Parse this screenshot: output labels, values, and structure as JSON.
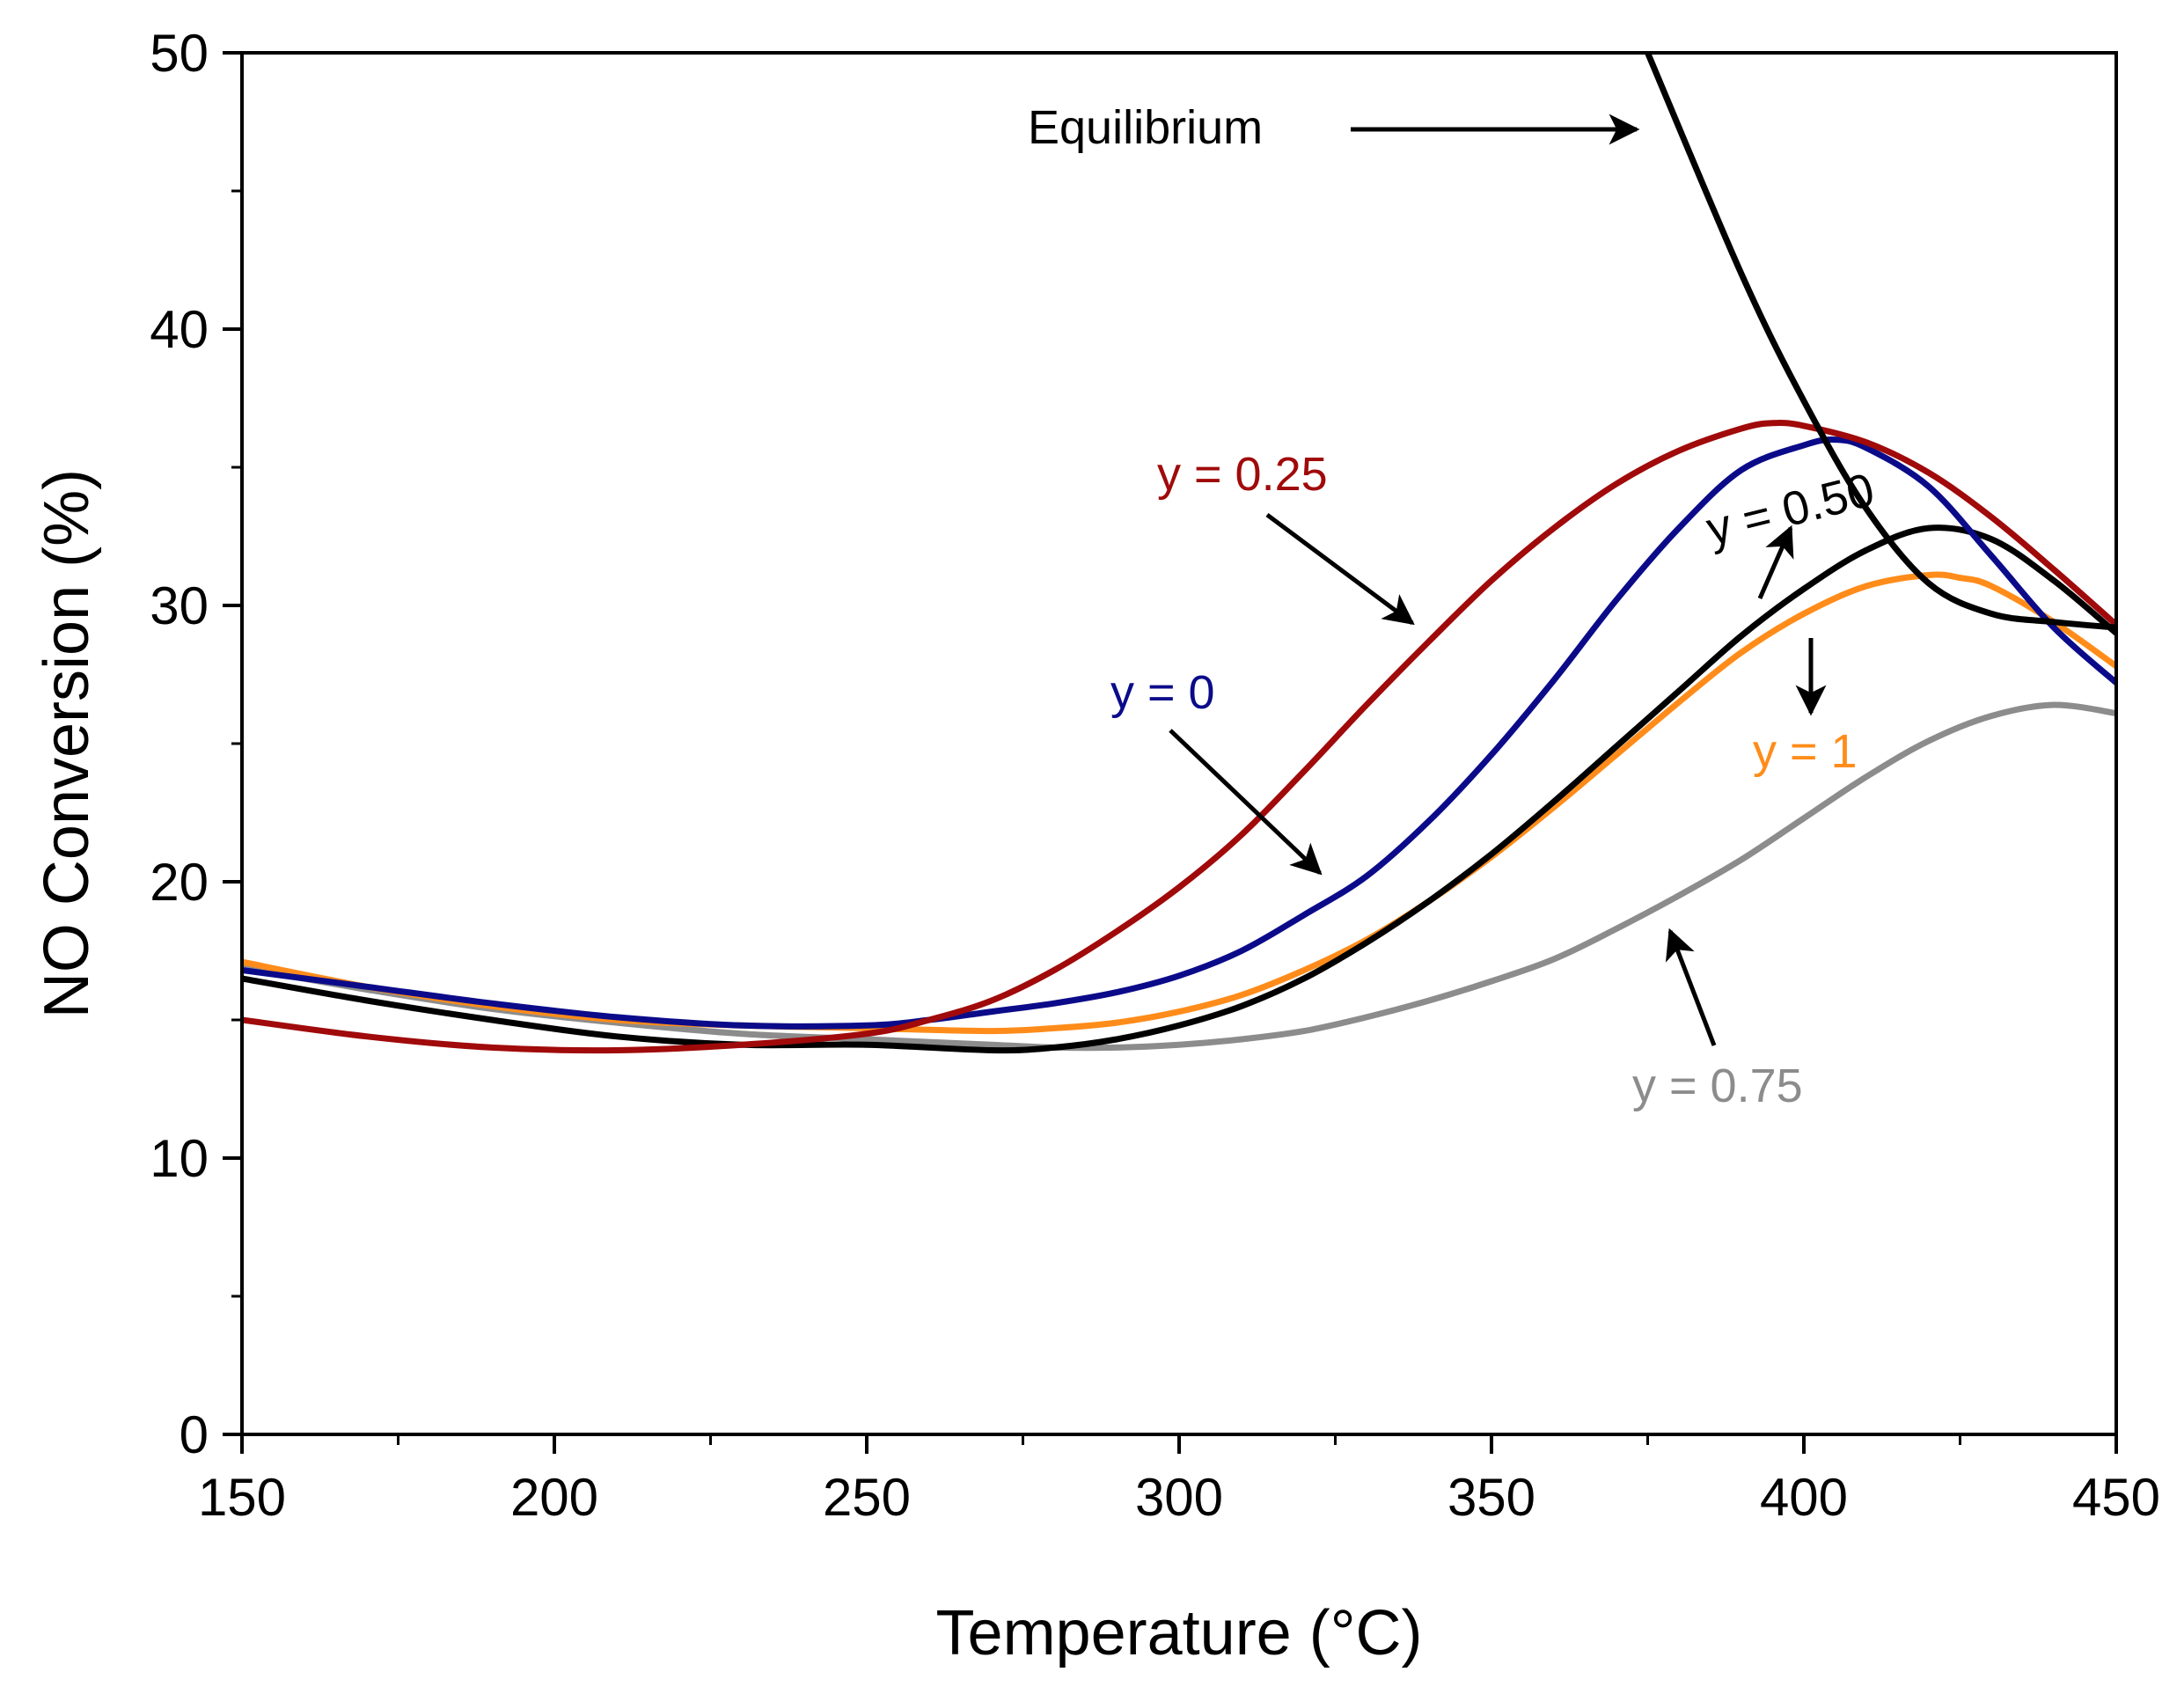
{
  "chart_data": {
    "type": "line",
    "title": "",
    "xlabel": "Temperature (°C)",
    "ylabel": "NO Conversion (%)",
    "xlim": [
      150,
      450
    ],
    "ylim": [
      0,
      50
    ],
    "x_ticks": [
      150,
      200,
      250,
      300,
      350,
      400,
      450
    ],
    "y_ticks": [
      0,
      10,
      20,
      30,
      40,
      50
    ],
    "x_tick_labels": [
      "150",
      "200",
      "250",
      "300",
      "350",
      "400",
      "450"
    ],
    "y_tick_labels": [
      "0",
      "10",
      "20",
      "30",
      "40",
      "50"
    ],
    "grid": false,
    "legend": "none",
    "series": [
      {
        "name": "y = 0",
        "color": "#0b0b8a",
        "x": [
          150,
          170,
          190,
          210,
          230,
          250,
          260,
          270,
          280,
          290,
          300,
          310,
          320,
          330,
          340,
          350,
          360,
          370,
          380,
          390,
          400,
          405,
          410,
          420,
          430,
          440,
          450
        ],
        "y": [
          16.8,
          16.2,
          15.6,
          15.1,
          14.8,
          14.8,
          15.0,
          15.3,
          15.6,
          16.0,
          16.6,
          17.5,
          18.8,
          20.2,
          22.2,
          24.6,
          27.3,
          30.2,
          32.8,
          34.9,
          35.8,
          36.0,
          35.7,
          34.3,
          31.8,
          29.2,
          27.2
        ]
      },
      {
        "name": "y = 0.25",
        "color": "#a00a0a",
        "x": [
          150,
          170,
          190,
          210,
          230,
          250,
          260,
          270,
          280,
          290,
          300,
          310,
          320,
          330,
          340,
          350,
          360,
          370,
          380,
          390,
          395,
          400,
          410,
          420,
          430,
          440,
          450
        ],
        "y": [
          15.0,
          14.4,
          14.0,
          13.9,
          14.1,
          14.5,
          15.0,
          15.7,
          16.8,
          18.2,
          19.8,
          21.7,
          24.0,
          26.4,
          28.7,
          30.9,
          32.8,
          34.4,
          35.6,
          36.4,
          36.6,
          36.5,
          35.9,
          34.8,
          33.2,
          31.3,
          29.3
        ]
      },
      {
        "name": "y = 0.50",
        "color": "#000000",
        "x": [
          150,
          170,
          190,
          210,
          230,
          250,
          270,
          280,
          290,
          300,
          310,
          320,
          330,
          340,
          350,
          360,
          370,
          380,
          390,
          400,
          410,
          420,
          430,
          440,
          450
        ],
        "y": [
          16.5,
          15.7,
          15.0,
          14.4,
          14.1,
          14.1,
          13.9,
          14.0,
          14.3,
          14.8,
          15.5,
          16.5,
          17.8,
          19.3,
          21.0,
          22.9,
          24.9,
          26.9,
          28.9,
          30.6,
          32.0,
          32.8,
          32.4,
          30.9,
          29.0
        ]
      },
      {
        "name": "y = 0.75",
        "color": "#8c8c8c",
        "x": [
          150,
          170,
          190,
          210,
          230,
          250,
          270,
          280,
          290,
          300,
          310,
          320,
          330,
          340,
          350,
          360,
          370,
          380,
          390,
          400,
          410,
          420,
          430,
          440,
          450
        ],
        "y": [
          16.9,
          16.1,
          15.4,
          14.9,
          14.5,
          14.3,
          14.1,
          14.0,
          14.0,
          14.1,
          14.3,
          14.6,
          15.1,
          15.7,
          16.4,
          17.2,
          18.3,
          19.5,
          20.8,
          22.3,
          23.8,
          25.1,
          26.0,
          26.4,
          26.1
        ]
      },
      {
        "name": "y = 1",
        "color": "#ff8c1a",
        "x": [
          150,
          170,
          190,
          210,
          230,
          250,
          270,
          280,
          290,
          300,
          310,
          320,
          330,
          340,
          350,
          360,
          370,
          380,
          390,
          400,
          410,
          420,
          425,
          430,
          440,
          450
        ],
        "y": [
          17.1,
          16.2,
          15.5,
          15.0,
          14.8,
          14.7,
          14.6,
          14.7,
          14.9,
          15.3,
          15.9,
          16.8,
          17.9,
          19.3,
          20.9,
          22.7,
          24.6,
          26.5,
          28.3,
          29.7,
          30.7,
          31.1,
          31.0,
          30.7,
          29.4,
          27.8
        ]
      },
      {
        "name": "Equilibrium",
        "color": "#000000",
        "x": [
          375,
          390,
          400,
          410,
          420,
          430,
          440,
          450
        ],
        "y": [
          50.0,
          42.0,
          37.4,
          33.5,
          30.8,
          29.7,
          29.4,
          29.2
        ]
      }
    ],
    "annotations": [
      {
        "text": "Equilibrium",
        "color": "#000000"
      },
      {
        "text": "y = 0.25",
        "color": "#a00a0a"
      },
      {
        "text": "y = 0",
        "color": "#0b0b8a"
      },
      {
        "text": "y = 0.50",
        "color": "#000000"
      },
      {
        "text": "y = 1",
        "color": "#ff8c1a"
      },
      {
        "text": "y = 0.75",
        "color": "#8c8c8c"
      }
    ]
  }
}
